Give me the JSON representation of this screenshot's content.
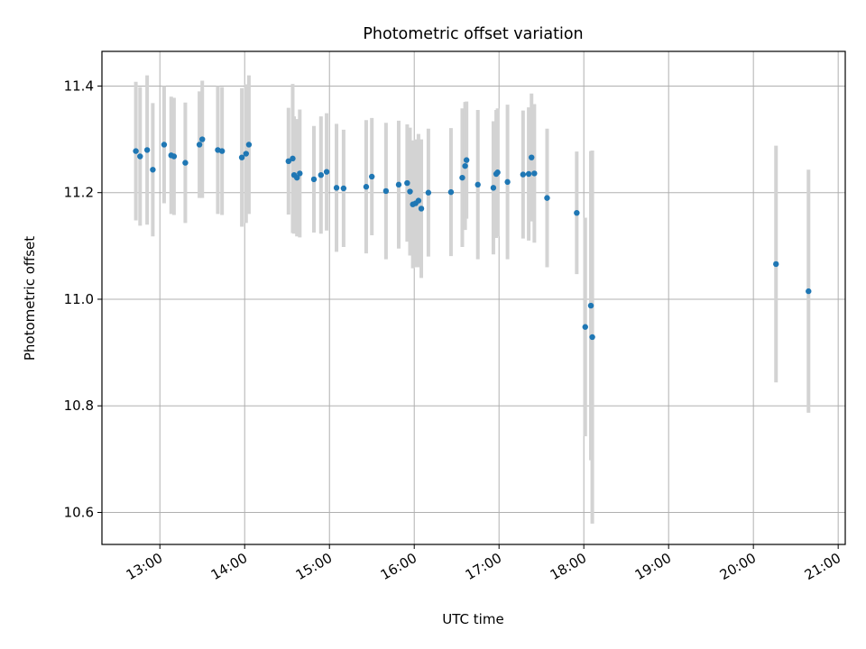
{
  "chart_data": {
    "type": "scatter",
    "title": "Photometric offset variation",
    "xlabel": "UTC time",
    "ylabel": "Photometric offset",
    "x_unit": "UTC time (HH:MM)",
    "xlim": [
      "12:19",
      "21:05"
    ],
    "ylim": [
      10.54,
      11.465
    ],
    "x_ticks": [
      "13:00",
      "14:00",
      "15:00",
      "16:00",
      "17:00",
      "18:00",
      "19:00",
      "20:00",
      "21:00"
    ],
    "y_ticks": [
      10.6,
      10.8,
      11.0,
      11.2,
      11.4
    ],
    "y_tick_labels": [
      "10.6",
      "10.8",
      "11.0",
      "11.2",
      "11.4"
    ],
    "grid": true,
    "legend": "none",
    "colors": {
      "points": "#1f77b4",
      "errorbars": "#d3d3d3",
      "grid": "#b0b0b0",
      "axes": "#000000"
    },
    "series": [
      {
        "x": [
          "12:43",
          "12:46",
          "12:51",
          "12:55",
          "13:03",
          "13:08",
          "13:10",
          "13:18",
          "13:28",
          "13:30",
          "13:41",
          "13:44",
          "13:58",
          "14:01",
          "14:03",
          "14:31",
          "14:34",
          "14:35",
          "14:37",
          "14:39",
          "14:49",
          "14:54",
          "14:58",
          "15:05",
          "15:10",
          "15:26",
          "15:30",
          "15:40",
          "15:49",
          "15:55",
          "15:57",
          "15:59",
          "16:01",
          "16:03",
          "16:05",
          "16:10",
          "16:26",
          "16:34",
          "16:36",
          "16:37",
          "16:45",
          "16:56",
          "16:58",
          "16:59",
          "17:06",
          "17:17",
          "17:21",
          "17:23",
          "17:25",
          "17:34",
          "17:55",
          "18:01",
          "18:05",
          "18:06",
          "20:16",
          "20:39"
        ],
        "y": [
          11.278,
          11.268,
          11.28,
          11.243,
          11.29,
          11.27,
          11.268,
          11.256,
          11.29,
          11.3,
          11.28,
          11.278,
          11.266,
          11.273,
          11.29,
          11.259,
          11.264,
          11.233,
          11.228,
          11.236,
          11.225,
          11.233,
          11.239,
          11.209,
          11.208,
          11.211,
          11.23,
          11.203,
          11.215,
          11.218,
          11.202,
          11.178,
          11.18,
          11.185,
          11.17,
          11.2,
          11.201,
          11.228,
          11.25,
          11.261,
          11.215,
          11.209,
          11.235,
          11.238,
          11.22,
          11.234,
          11.235,
          11.266,
          11.236,
          11.19,
          11.162,
          10.948,
          10.988,
          10.929,
          11.066,
          11.015
        ],
        "yerr": [
          0.13,
          0.13,
          0.14,
          0.125,
          0.11,
          0.11,
          0.11,
          0.113,
          0.1,
          0.11,
          0.12,
          0.12,
          0.13,
          0.13,
          0.13,
          0.1,
          0.14,
          0.11,
          0.11,
          0.12,
          0.1,
          0.11,
          0.11,
          0.12,
          0.11,
          0.125,
          0.11,
          0.128,
          0.12,
          0.11,
          0.12,
          0.12,
          0.12,
          0.125,
          0.13,
          0.12,
          0.12,
          0.13,
          0.12,
          0.11,
          0.14,
          0.125,
          0.12,
          0.12,
          0.145,
          0.12,
          0.125,
          0.12,
          0.13,
          0.13,
          0.115,
          0.205,
          0.29,
          0.35,
          0.222,
          0.228
        ]
      }
    ]
  }
}
